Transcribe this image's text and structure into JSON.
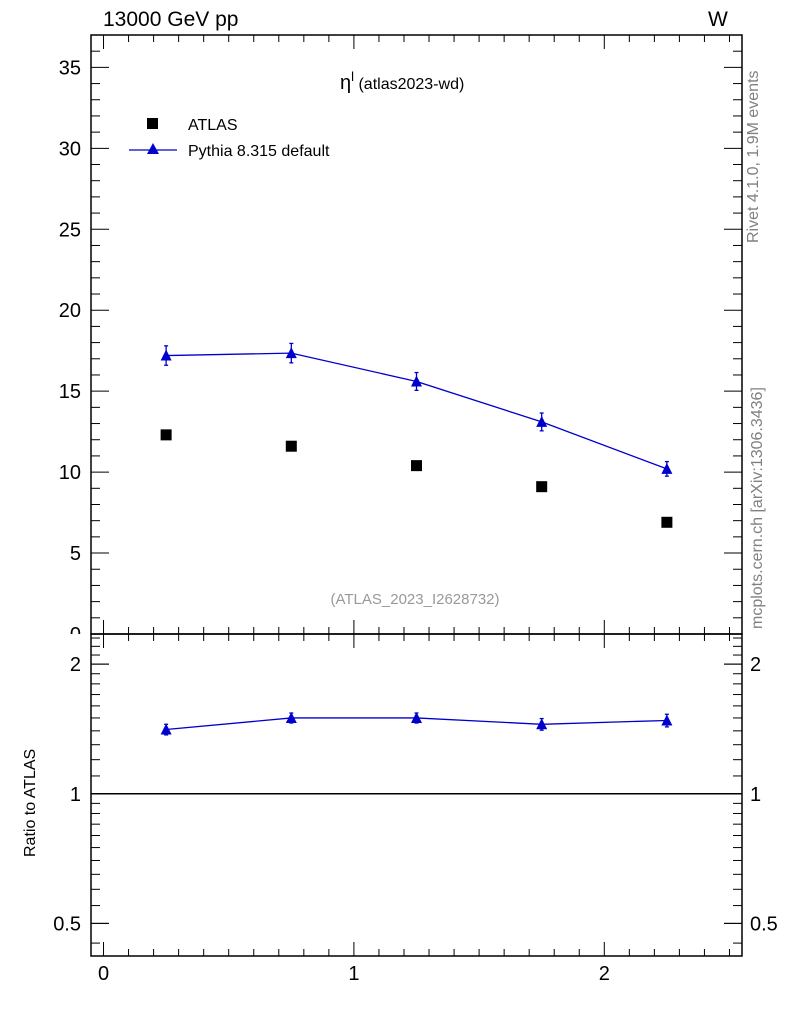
{
  "header": {
    "left": "13000 GeV pp",
    "right": "W"
  },
  "side_text": {
    "rivet": "Rivet 4.1.0,  1.9M events",
    "mcplots": "mcplots.cern.ch [arXiv:1306.3436]"
  },
  "chart_data": [
    {
      "type": "scatter",
      "panel": "main",
      "title_main": "η",
      "title_sup": "l",
      "title_suffix": " (atlas2023-wd)",
      "watermark": "(ATLAS_2023_I2628732)",
      "xlim": [
        -0.05,
        2.55
      ],
      "ylim": [
        0,
        37
      ],
      "yticks": [
        0,
        5,
        10,
        15,
        20,
        25,
        30,
        35
      ],
      "ytick_labels": [
        "0",
        "5",
        "10",
        "15",
        "20",
        "25",
        "30",
        "35"
      ],
      "legend_position": "top-left",
      "series": [
        {
          "name": "ATLAS",
          "style": "marker",
          "marker": "square",
          "color": "#000000",
          "x": [
            0.25,
            0.75,
            1.25,
            1.75,
            2.25
          ],
          "y": [
            12.3,
            11.6,
            10.4,
            9.1,
            6.9
          ]
        },
        {
          "name": "Pythia 8.315 default",
          "style": "line+marker",
          "marker": "triangle",
          "color": "#0000cc",
          "x": [
            0.25,
            0.75,
            1.25,
            1.75,
            2.25
          ],
          "y": [
            17.2,
            17.35,
            15.6,
            13.1,
            10.2
          ],
          "yerr": [
            0.6,
            0.6,
            0.55,
            0.55,
            0.45
          ]
        }
      ]
    },
    {
      "type": "line",
      "panel": "ratio",
      "ylabel": "Ratio to ATLAS",
      "yscale": "log",
      "ylim": [
        0.42,
        2.35
      ],
      "yticks": [
        0.5,
        1,
        2
      ],
      "ytick_labels": [
        "0.5",
        "1",
        "2"
      ],
      "xlim": [
        -0.05,
        2.55
      ],
      "xticks": [
        0,
        1,
        2
      ],
      "xtick_labels": [
        "0",
        "1",
        "2"
      ],
      "reference_line": 1,
      "series": [
        {
          "name": "Pythia 8.315 default",
          "color": "#0000cc",
          "x": [
            0.25,
            0.75,
            1.25,
            1.75,
            2.25
          ],
          "y": [
            1.41,
            1.5,
            1.5,
            1.45,
            1.48
          ],
          "yerr": [
            0.04,
            0.04,
            0.04,
            0.045,
            0.05
          ]
        }
      ]
    }
  ]
}
